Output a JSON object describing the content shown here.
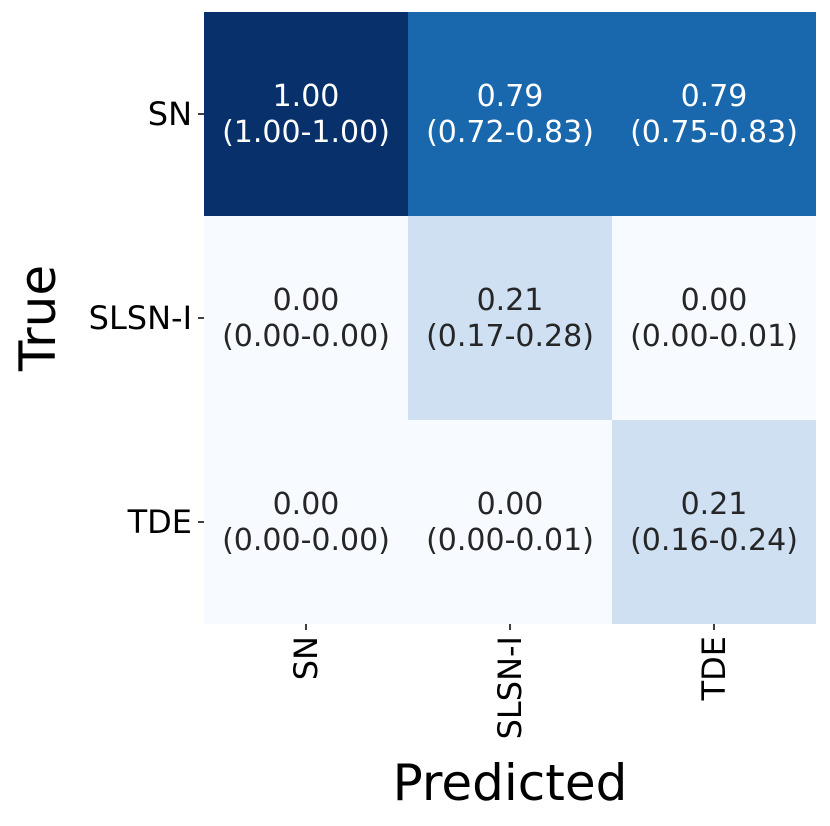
{
  "chart_data": {
    "type": "heatmap",
    "title": "",
    "xlabel": "Predicted",
    "ylabel": "True",
    "x_categories": [
      "SN",
      "SLSN-I",
      "TDE"
    ],
    "y_categories": [
      "SN",
      "SLSN-I",
      "TDE"
    ],
    "values": [
      [
        1.0,
        0.79,
        0.79
      ],
      [
        0.0,
        0.21,
        0.0
      ],
      [
        0.0,
        0.0,
        0.21
      ]
    ],
    "cell_labels": [
      [
        "1.00",
        "0.79",
        "0.79"
      ],
      [
        "0.00",
        "0.21",
        "0.00"
      ],
      [
        "0.00",
        "0.00",
        "0.21"
      ]
    ],
    "cell_ranges": [
      [
        "(1.00-1.00)",
        "(0.72-0.83)",
        "(0.75-0.83)"
      ],
      [
        "(0.00-0.00)",
        "(0.17-0.28)",
        "(0.00-0.01)"
      ],
      [
        "(0.00-0.00)",
        "(0.00-0.01)",
        "(0.16-0.24)"
      ]
    ],
    "colormap": "Blues",
    "value_range": [
      0,
      1
    ],
    "colorbar": false,
    "grid": false
  }
}
